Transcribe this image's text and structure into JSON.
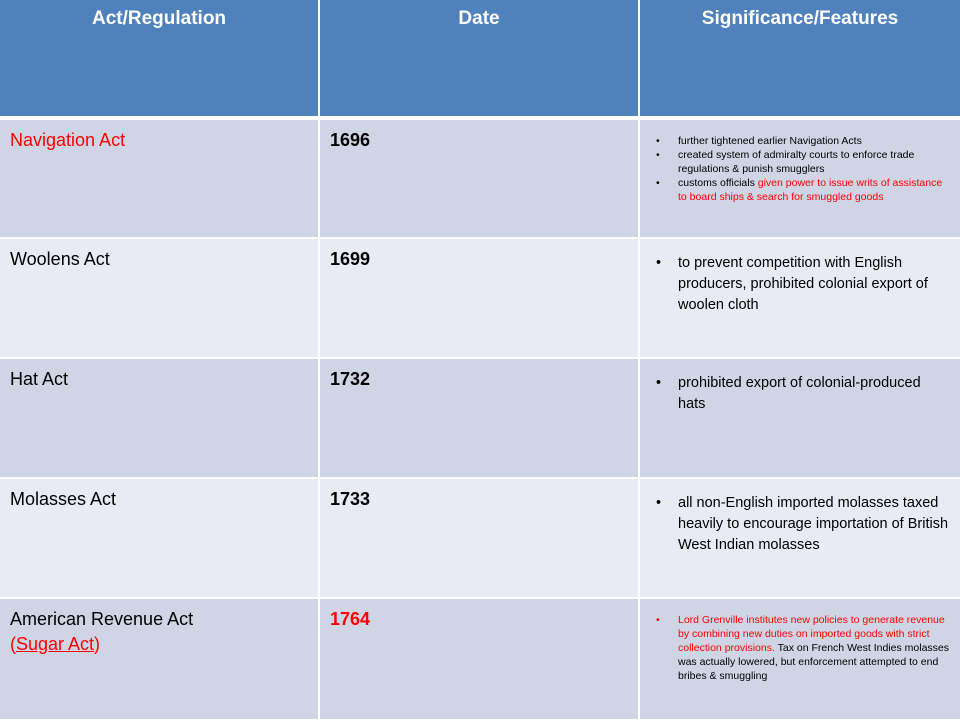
{
  "headers": {
    "act": "Act/Regulation",
    "date": "Date",
    "features": "Significance/Features"
  },
  "rows": [
    {
      "act": "Navigation Act",
      "date": "1696",
      "features": [
        {
          "text": "further tightened earlier Navigation Acts"
        },
        {
          "text": "created system of admiralty courts to enforce trade regulations & punish smugglers"
        },
        {
          "pre": "customs officials ",
          "red": "given power to issue writs of assistance to board ships & search for smuggled goods"
        }
      ]
    },
    {
      "act": "Woolens Act",
      "date": "1699",
      "features": [
        {
          "text": "to prevent competition with English producers, prohibited colonial export of woolen cloth"
        }
      ]
    },
    {
      "act": "Hat Act",
      "date": "1732",
      "features": [
        {
          "text": "prohibited export of colonial-produced hats"
        }
      ]
    },
    {
      "act": "Molasses Act",
      "date": "1733",
      "features": [
        {
          "text": "all non-English imported molasses taxed heavily to encourage importation of British West Indian molasses"
        }
      ]
    },
    {
      "act": "American Revenue Act",
      "act_paren_open": "(",
      "act_link": "Sugar Act",
      "act_paren_close": ")",
      "date": "1764",
      "features": [
        {
          "red": "Lord Grenville institutes new policies to generate revenue by combining new duties on imported goods with strict collection provisions.",
          "post": " Tax on French West Indies molasses was actually lowered, but enforcement attempted to end bribes & smuggling"
        }
      ]
    }
  ],
  "colors": {
    "header_bg": "#4f81bd",
    "row_dark": "#cfd5e5",
    "row_light": "#e8ebf4",
    "highlight": "#ff0000"
  }
}
